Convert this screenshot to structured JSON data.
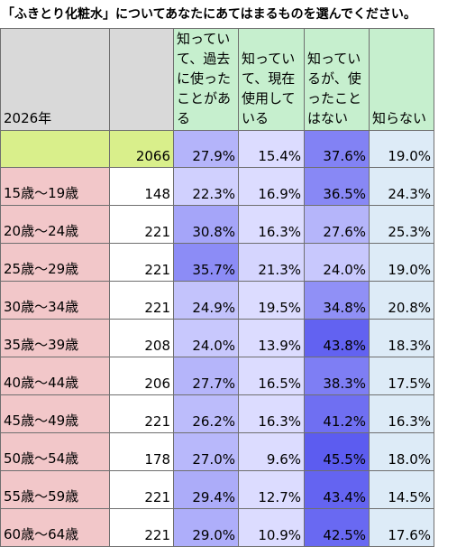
{
  "title": "「ふきとり化粧水」についてあなたにあてはまるものを選んでください。",
  "year_label": "2026年",
  "headers": [
    "知っていて、過去に使ったことがある",
    "知っていて、現在使用している",
    "知っているが、使ったことはない",
    "知らない"
  ],
  "total": {
    "n": "2066",
    "values": [
      "27.9%",
      "15.4%",
      "37.6%",
      "19.0%"
    ]
  },
  "rows": [
    {
      "label": "15歳～19歳",
      "n": "148",
      "values": [
        "22.3%",
        "16.9%",
        "36.5%",
        "24.3%"
      ]
    },
    {
      "label": "20歳～24歳",
      "n": "221",
      "values": [
        "30.8%",
        "16.3%",
        "27.6%",
        "25.3%"
      ]
    },
    {
      "label": "25歳～29歳",
      "n": "221",
      "values": [
        "35.7%",
        "21.3%",
        "24.0%",
        "19.0%"
      ]
    },
    {
      "label": "30歳～34歳",
      "n": "221",
      "values": [
        "24.9%",
        "19.5%",
        "34.8%",
        "20.8%"
      ]
    },
    {
      "label": "35歳～39歳",
      "n": "208",
      "values": [
        "24.0%",
        "13.9%",
        "43.8%",
        "18.3%"
      ]
    },
    {
      "label": "40歳～44歳",
      "n": "206",
      "values": [
        "27.7%",
        "16.5%",
        "38.3%",
        "17.5%"
      ]
    },
    {
      "label": "45歳～49歳",
      "n": "221",
      "values": [
        "26.2%",
        "16.3%",
        "41.2%",
        "16.3%"
      ]
    },
    {
      "label": "50歳～54歳",
      "n": "178",
      "values": [
        "27.0%",
        "9.6%",
        "45.5%",
        "18.0%"
      ]
    },
    {
      "label": "55歳～59歳",
      "n": "221",
      "values": [
        "29.4%",
        "12.7%",
        "43.4%",
        "14.5%"
      ]
    },
    {
      "label": "60歳～64歳",
      "n": "221",
      "values": [
        "29.0%",
        "10.9%",
        "42.5%",
        "17.6%"
      ]
    }
  ],
  "colors": {
    "header_bg": "#d9d9d9",
    "header_option_bg": "#c6efce",
    "total_bg": "#d9ef8b",
    "age_bg": "#f2c7c9",
    "cell_bg": "#ffffff",
    "last_col_bg": "#ddebf7",
    "heat_low": "#dcdcff",
    "heat_high": "#5c5cf0"
  }
}
